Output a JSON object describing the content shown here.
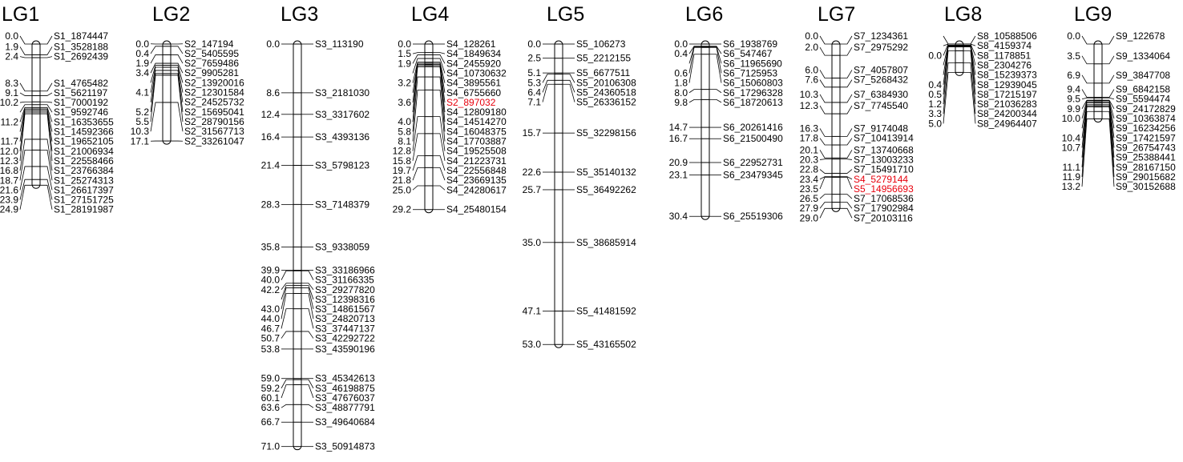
{
  "linkage_groups": [
    {
      "name": "LG1",
      "markers": [
        {
          "pos": "0.0",
          "name": "S1_1874447"
        },
        {
          "pos": "1.9",
          "name": "S1_3528188"
        },
        {
          "pos": "2.4",
          "name": "S1_2692439"
        },
        {
          "pos": "8.3",
          "name": "S1_4765482"
        },
        {
          "pos": "9.1",
          "name": "S1_5621197"
        },
        {
          "pos": "10.2",
          "name": "S1_7000192"
        },
        {
          "pos": "",
          "name": "S1_9592746"
        },
        {
          "pos": "11.2",
          "name": "S1_16353655"
        },
        {
          "pos": "",
          "name": "S1_14592366"
        },
        {
          "pos": "11.7",
          "name": "S1_19652105"
        },
        {
          "pos": "12.0",
          "name": "S1_21006934"
        },
        {
          "pos": "12.3",
          "name": "S1_22558466"
        },
        {
          "pos": "16.8",
          "name": "S1_23766384"
        },
        {
          "pos": "18.7",
          "name": "S1_25274313"
        },
        {
          "pos": "21.6",
          "name": "S1_26617397"
        },
        {
          "pos": "23.9",
          "name": "S1_27151725"
        },
        {
          "pos": "24.9",
          "name": "S1_28191987"
        }
      ]
    },
    {
      "name": "LG2",
      "markers": [
        {
          "pos": "0.0",
          "name": "S2_147194"
        },
        {
          "pos": "0.4",
          "name": "S2_5405595"
        },
        {
          "pos": "1.9",
          "name": "S2_7659486"
        },
        {
          "pos": "3.4",
          "name": "S2_9905281"
        },
        {
          "pos": "",
          "name": "S2_13920016"
        },
        {
          "pos": "4.1",
          "name": "S2_12301584"
        },
        {
          "pos": "",
          "name": "S2_24525732"
        },
        {
          "pos": "5.2",
          "name": "S2_15695041"
        },
        {
          "pos": "5.5",
          "name": "S2_28790156"
        },
        {
          "pos": "10.3",
          "name": "S2_31567713"
        },
        {
          "pos": "17.1",
          "name": "S2_33261047"
        }
      ]
    },
    {
      "name": "LG3",
      "markers": [
        {
          "pos": "0.0",
          "name": "S3_113190"
        },
        {
          "pos": "8.6",
          "name": "S3_2181030"
        },
        {
          "pos": "12.4",
          "name": "S3_3317602"
        },
        {
          "pos": "16.4",
          "name": "S3_4393136"
        },
        {
          "pos": "21.4",
          "name": "S3_5798123"
        },
        {
          "pos": "28.3",
          "name": "S3_7148379"
        },
        {
          "pos": "35.8",
          "name": "S3_9338059"
        },
        {
          "pos": "39.9",
          "name": "S3_33186966"
        },
        {
          "pos": "40.0",
          "name": "S3_31166335"
        },
        {
          "pos": "42.2",
          "name": "S3_29277820"
        },
        {
          "pos": "",
          "name": "S3_12398316"
        },
        {
          "pos": "43.0",
          "name": "S3_14861567"
        },
        {
          "pos": "44.0",
          "name": "S3_24820713"
        },
        {
          "pos": "46.7",
          "name": "S3_37447137"
        },
        {
          "pos": "50.7",
          "name": "S3_42292722"
        },
        {
          "pos": "53.8",
          "name": "S3_43590196"
        },
        {
          "pos": "59.0",
          "name": "S3_45342613"
        },
        {
          "pos": "59.2",
          "name": "S3_46198875"
        },
        {
          "pos": "60.1",
          "name": "S3_47676037"
        },
        {
          "pos": "63.6",
          "name": "S3_48877791"
        },
        {
          "pos": "66.7",
          "name": "S3_49640684"
        },
        {
          "pos": "71.0",
          "name": "S3_50914873"
        }
      ]
    },
    {
      "name": "LG4",
      "markers": [
        {
          "pos": "0.0",
          "name": "S4_128261"
        },
        {
          "pos": "1.5",
          "name": "S4_1849634"
        },
        {
          "pos": "1.9",
          "name": "S4_2455920"
        },
        {
          "pos": "",
          "name": "S4_10730632"
        },
        {
          "pos": "3.2",
          "name": "S4_3895561"
        },
        {
          "pos": "",
          "name": "S4_6755660"
        },
        {
          "pos": "3.6",
          "name": "S2_897032",
          "highlight": true
        },
        {
          "pos": "",
          "name": "S4_12809180"
        },
        {
          "pos": "4.0",
          "name": "S4_14514270"
        },
        {
          "pos": "5.8",
          "name": "S4_16048375"
        },
        {
          "pos": "8.1",
          "name": "S4_17703887"
        },
        {
          "pos": "12.8",
          "name": "S4_19525508"
        },
        {
          "pos": "15.8",
          "name": "S4_21223731"
        },
        {
          "pos": "19.7",
          "name": "S4_22556848"
        },
        {
          "pos": "21.8",
          "name": "S4_23669135"
        },
        {
          "pos": "25.0",
          "name": "S4_24280617"
        },
        {
          "pos": "29.2",
          "name": "S4_25480154"
        }
      ]
    },
    {
      "name": "LG5",
      "markers": [
        {
          "pos": "0.0",
          "name": "S5_106273"
        },
        {
          "pos": "2.5",
          "name": "S5_2212155"
        },
        {
          "pos": "5.1",
          "name": "S5_6677511"
        },
        {
          "pos": "5.3",
          "name": "S5_20106308"
        },
        {
          "pos": "6.4",
          "name": "S5_24360518"
        },
        {
          "pos": "7.1",
          "name": "S5_26336152"
        },
        {
          "pos": "15.7",
          "name": "S5_32298156"
        },
        {
          "pos": "22.6",
          "name": "S5_35140132"
        },
        {
          "pos": "25.7",
          "name": "S5_36492262"
        },
        {
          "pos": "35.0",
          "name": "S5_38685914"
        },
        {
          "pos": "47.1",
          "name": "S5_41481592"
        },
        {
          "pos": "53.0",
          "name": "S5_43165502"
        }
      ]
    },
    {
      "name": "LG6",
      "markers": [
        {
          "pos": "0.0",
          "name": "S6_1938769"
        },
        {
          "pos": "0.4",
          "name": "S6_547467"
        },
        {
          "pos": "",
          "name": "S6_11965690"
        },
        {
          "pos": "0.6",
          "name": "S6_7125953"
        },
        {
          "pos": "1.8",
          "name": "S6_15060803"
        },
        {
          "pos": "8.0",
          "name": "S6_17296328"
        },
        {
          "pos": "9.8",
          "name": "S6_18720613"
        },
        {
          "pos": "14.7",
          "name": "S6_20261416"
        },
        {
          "pos": "16.7",
          "name": "S6_21500490"
        },
        {
          "pos": "20.9",
          "name": "S6_22952731"
        },
        {
          "pos": "23.1",
          "name": "S6_23479345"
        },
        {
          "pos": "30.4",
          "name": "S6_25519306"
        }
      ]
    },
    {
      "name": "LG7",
      "markers": [
        {
          "pos": "0.0",
          "name": "S7_1234361"
        },
        {
          "pos": "2.0",
          "name": "S7_2975292"
        },
        {
          "pos": "6.0",
          "name": "S7_4057807"
        },
        {
          "pos": "7.6",
          "name": "S7_5268432"
        },
        {
          "pos": "10.3",
          "name": "S7_6384930"
        },
        {
          "pos": "12.3",
          "name": "S7_7745540"
        },
        {
          "pos": "16.3",
          "name": "S7_9174048"
        },
        {
          "pos": "17.8",
          "name": "S7_10413914"
        },
        {
          "pos": "20.1",
          "name": "S7_13740668"
        },
        {
          "pos": "20.3",
          "name": "S7_13003233"
        },
        {
          "pos": "22.8",
          "name": "S7_15491710"
        },
        {
          "pos": "23.4",
          "name": "S4_5279144",
          "highlight": true
        },
        {
          "pos": "23.5",
          "name": "S5_14956693",
          "highlight": true
        },
        {
          "pos": "26.5",
          "name": "S7_17068536"
        },
        {
          "pos": "27.9",
          "name": "S7_17902984"
        },
        {
          "pos": "29.0",
          "name": "S7_20103116"
        }
      ]
    },
    {
      "name": "LG8",
      "markers": [
        {
          "pos": "",
          "name": "S8_10588506"
        },
        {
          "pos": "",
          "name": "S8_4159374"
        },
        {
          "pos": "0.0",
          "name": "S8_1178851"
        },
        {
          "pos": "",
          "name": "S8_2304276"
        },
        {
          "pos": "",
          "name": "S8_15239373"
        },
        {
          "pos": "0.4",
          "name": "S8_12939045"
        },
        {
          "pos": "0.5",
          "name": "S8_17215197"
        },
        {
          "pos": "1.2",
          "name": "S8_21036283"
        },
        {
          "pos": "3.3",
          "name": "S8_24200344"
        },
        {
          "pos": "5.0",
          "name": "S8_24964407"
        }
      ]
    },
    {
      "name": "LG9",
      "markers": [
        {
          "pos": "0.0",
          "name": "S9_122678"
        },
        {
          "pos": "3.5",
          "name": "S9_1334064"
        },
        {
          "pos": "6.9",
          "name": "S9_3847708"
        },
        {
          "pos": "9.4",
          "name": "S9_6842158"
        },
        {
          "pos": "9.5",
          "name": "S9_5594474"
        },
        {
          "pos": "9.9",
          "name": "S9_24172829"
        },
        {
          "pos": "10.0",
          "name": "S9_10363874"
        },
        {
          "pos": "",
          "name": "S9_16234256"
        },
        {
          "pos": "10.4",
          "name": "S9_17421597"
        },
        {
          "pos": "10.7",
          "name": "S9_26754743"
        },
        {
          "pos": "",
          "name": "S9_25388441"
        },
        {
          "pos": "11.1",
          "name": "S9_28167150"
        },
        {
          "pos": "11.9",
          "name": "S9_29015682"
        },
        {
          "pos": "13.2",
          "name": "S9_30152688"
        }
      ]
    }
  ]
}
